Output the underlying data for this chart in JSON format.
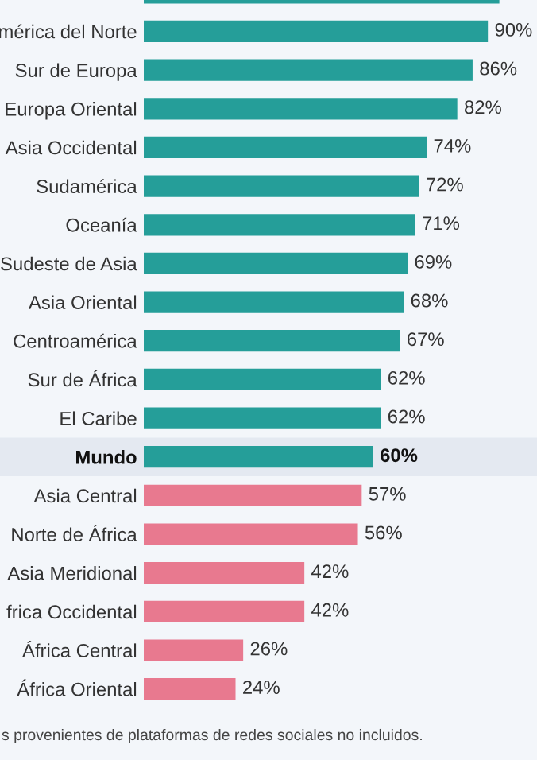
{
  "chart_data": {
    "type": "bar",
    "orientation": "horizontal",
    "categories": [
      null,
      "mérica del Norte",
      "Sur de Europa",
      "Europa Oriental",
      "Asia Occidental",
      "Sudamérica",
      "Oceanía",
      "Sudeste de Asia",
      "Asia Oriental",
      "Centroamérica",
      "Sur de África",
      "El Caribe",
      "Mundo",
      "Asia Central",
      "Norte de África",
      "Asia Meridional",
      "frica Occidental",
      "África Central",
      "África Oriental"
    ],
    "values": [
      93,
      90,
      86,
      82,
      74,
      72,
      71,
      69,
      68,
      67,
      62,
      62,
      60,
      57,
      56,
      42,
      42,
      26,
      24
    ],
    "colors": [
      "#259e99",
      "#259e99",
      "#259e99",
      "#259e99",
      "#259e99",
      "#259e99",
      "#259e99",
      "#259e99",
      "#259e99",
      "#259e99",
      "#259e99",
      "#259e99",
      "#259e99",
      "#e8798f",
      "#e8798f",
      "#e8798f",
      "#e8798f",
      "#e8798f",
      "#e8798f"
    ],
    "value_labels": [
      null,
      "90%",
      "86%",
      "82%",
      "74%",
      "72%",
      "71%",
      "69%",
      "68%",
      "67%",
      "62%",
      "62%",
      "60%",
      "57%",
      "56%",
      "42%",
      "42%",
      "26%",
      "24%"
    ],
    "tick_labels": "y",
    "bands": [
      {
        "axis": "y",
        "from": "Mundo",
        "to": "Mundo",
        "color": "#e4e9f1"
      }
    ],
    "annotations": [
      "s provenientes de plataformas de redes sociales no incluidos."
    ]
  }
}
